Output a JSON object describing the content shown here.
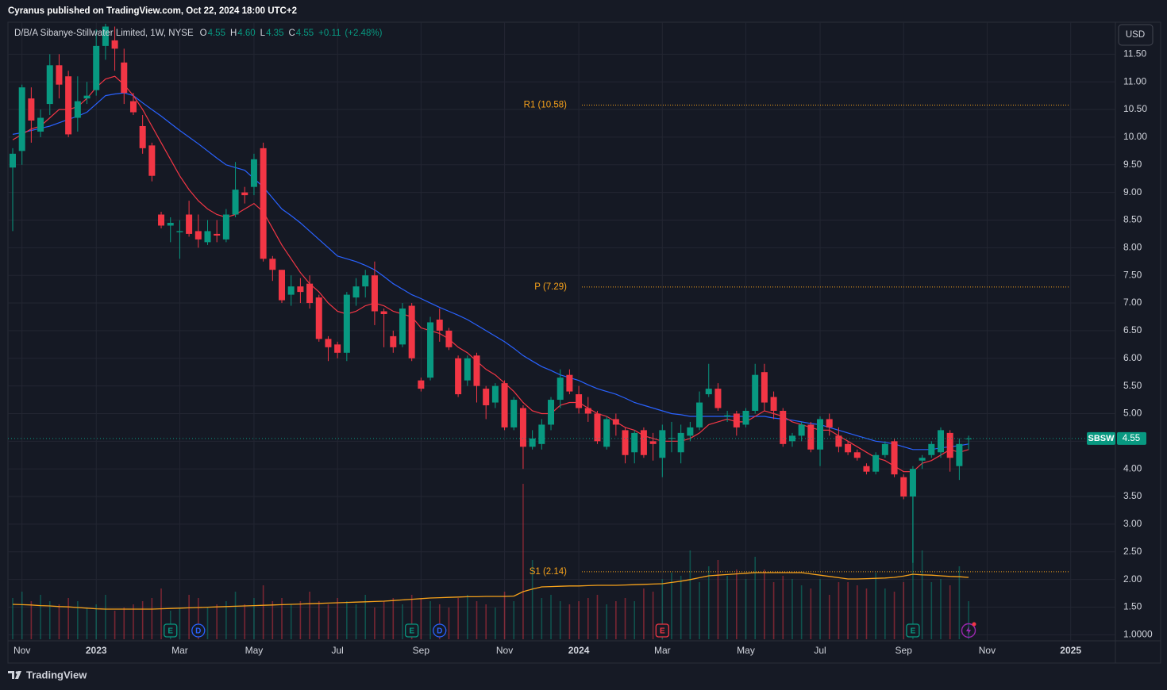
{
  "publisher": "Cyranus published on TradingView.com, Oct 22, 2024 18:00 UTC+2",
  "brand": "TradingView",
  "currency_button": "USD",
  "chart_data": {
    "type": "candlestick",
    "title": "D/B/A Sibanye-Stillwater Limited, 1W, NYSE",
    "header_values": [
      {
        "key": "O",
        "text": "4.55"
      },
      {
        "key": "H",
        "text": "4.60"
      },
      {
        "key": "L",
        "text": "4.35"
      },
      {
        "key": "C",
        "text": "4.55"
      }
    ],
    "change": "+0.11",
    "change_pct": "(+2.48%)",
    "up_color": "#089981",
    "down_color": "#f23645",
    "grid": true,
    "categories": [
      null,
      "Nov",
      null,
      null,
      null,
      null,
      null,
      null,
      null,
      "2023",
      null,
      null,
      null,
      null,
      null,
      null,
      null,
      null,
      "Mar",
      null,
      null,
      null,
      null,
      null,
      null,
      null,
      "May",
      null,
      null,
      null,
      null,
      null,
      null,
      null,
      null,
      "Jul",
      null,
      null,
      null,
      null,
      null,
      null,
      null,
      null,
      "Sep",
      null,
      null,
      null,
      null,
      null,
      null,
      null,
      null,
      "Nov",
      null,
      null,
      null,
      null,
      null,
      null,
      null,
      "2024",
      null,
      null,
      null,
      null,
      null,
      null,
      null,
      null,
      "Mar",
      null,
      null,
      null,
      null,
      null,
      null,
      null,
      null,
      "May",
      null,
      null,
      null,
      null,
      null,
      null,
      null,
      "Jul",
      null,
      null,
      null,
      null,
      null,
      null,
      null,
      null,
      "Sep",
      null,
      null,
      null,
      null,
      null,
      null,
      null,
      null,
      "Nov",
      null,
      null,
      null,
      null,
      null,
      null,
      null,
      null,
      "2025",
      null
    ],
    "open": [
      9.45,
      9.75,
      10.7,
      10.1,
      10.6,
      11.3,
      11.1,
      10.35,
      10.7,
      10.85,
      11.65,
      11.75,
      11.35,
      10.65,
      10.2,
      9.85,
      8.6,
      8.4,
      8.28,
      8.6,
      8.3,
      8.1,
      8.25,
      8.15,
      8.6,
      9.0,
      9.1,
      9.8,
      7.8,
      7.6,
      7.15,
      7.3,
      7.35,
      7.1,
      6.35,
      6.25,
      6.1,
      7.1,
      7.3,
      7.5,
      6.85,
      6.4,
      6.25,
      6.95,
      5.6,
      5.65,
      6.7,
      6.5,
      6.0,
      5.6,
      6.05,
      5.45,
      5.2,
      5.55,
      4.75,
      5.1,
      4.4,
      4.45,
      4.8,
      5.25,
      5.7,
      5.35,
      5.1,
      5.0,
      4.4,
      4.9,
      4.7,
      4.3,
      4.7,
      4.5,
      4.2,
      4.55,
      4.3,
      4.6,
      4.75,
      5.35,
      5.45,
      4.95,
      5.0,
      4.8,
      5.05,
      5.75,
      5.3,
      5.05,
      4.5,
      4.6,
      4.8,
      4.35,
      4.9,
      4.6,
      4.45,
      4.3,
      4.05,
      3.95,
      4.25,
      4.5,
      3.85,
      3.5,
      4.15,
      4.25,
      4.3,
      4.65,
      4.05,
      4.55,
      null,
      null,
      null,
      null,
      null,
      null,
      null,
      null,
      null,
      null,
      null,
      null
    ],
    "high": [
      9.8,
      10.95,
      10.9,
      10.5,
      11.5,
      11.5,
      11.2,
      11.1,
      11.0,
      11.95,
      12.05,
      12.0,
      11.6,
      10.8,
      10.4,
      9.9,
      8.65,
      8.55,
      8.5,
      8.85,
      8.6,
      8.5,
      8.5,
      8.7,
      9.55,
      9.1,
      9.7,
      9.9,
      7.85,
      7.6,
      7.5,
      7.45,
      7.5,
      7.15,
      6.4,
      6.3,
      7.2,
      7.45,
      7.6,
      7.75,
      6.9,
      6.5,
      7.0,
      7.0,
      5.65,
      6.75,
      6.9,
      6.55,
      6.05,
      6.05,
      6.1,
      5.5,
      5.55,
      5.6,
      5.3,
      5.15,
      4.7,
      4.9,
      5.3,
      5.8,
      5.8,
      5.5,
      5.3,
      5.05,
      4.95,
      5.0,
      4.75,
      4.7,
      4.75,
      4.65,
      4.8,
      4.85,
      4.8,
      4.85,
      5.4,
      5.9,
      5.55,
      5.05,
      5.05,
      5.1,
      5.9,
      5.9,
      5.4,
      5.1,
      4.65,
      4.85,
      4.85,
      4.95,
      5.0,
      4.75,
      4.5,
      4.35,
      4.1,
      4.3,
      4.5,
      4.55,
      3.9,
      4.05,
      4.25,
      4.5,
      4.75,
      4.7,
      4.55,
      4.6,
      null,
      null,
      null,
      null,
      null,
      null,
      null,
      null,
      null,
      null,
      null,
      null
    ],
    "low": [
      8.3,
      9.5,
      9.9,
      10.0,
      10.4,
      10.7,
      10.0,
      10.1,
      10.6,
      10.75,
      11.4,
      11.2,
      10.6,
      10.4,
      9.7,
      9.2,
      8.35,
      8.1,
      7.8,
      8.2,
      8.0,
      8.05,
      8.1,
      8.1,
      8.55,
      8.8,
      8.95,
      7.75,
      7.4,
      7.0,
      6.95,
      7.0,
      6.9,
      6.3,
      5.95,
      6.0,
      5.95,
      6.95,
      7.1,
      6.6,
      6.2,
      6.1,
      6.2,
      5.95,
      5.4,
      5.6,
      6.3,
      6.15,
      5.3,
      5.5,
      5.2,
      4.9,
      5.1,
      4.7,
      4.7,
      4.0,
      4.35,
      4.35,
      4.7,
      5.1,
      5.35,
      5.0,
      4.85,
      4.45,
      4.35,
      4.6,
      4.1,
      4.1,
      4.2,
      4.15,
      3.85,
      4.3,
      4.1,
      4.5,
      4.7,
      5.3,
      5.05,
      4.85,
      4.6,
      4.75,
      5.0,
      5.05,
      4.9,
      4.4,
      4.4,
      4.5,
      4.3,
      4.05,
      4.6,
      4.3,
      4.25,
      4.15,
      3.9,
      3.9,
      4.2,
      3.85,
      3.45,
      2.3,
      4.0,
      4.2,
      4.2,
      3.95,
      3.8,
      4.35,
      null,
      null,
      null,
      null,
      null,
      null,
      null,
      null,
      null,
      null,
      null,
      null
    ],
    "close": [
      9.7,
      10.9,
      10.3,
      10.35,
      11.3,
      10.95,
      10.05,
      10.65,
      10.75,
      11.65,
      12.0,
      11.6,
      10.8,
      10.45,
      9.8,
      9.3,
      8.4,
      8.45,
      8.3,
      8.25,
      8.15,
      8.3,
      8.22,
      8.6,
      9.05,
      8.95,
      9.6,
      7.8,
      7.6,
      7.05,
      7.3,
      7.2,
      7.0,
      6.35,
      6.2,
      6.1,
      7.15,
      7.3,
      7.5,
      6.85,
      6.8,
      6.2,
      6.9,
      6.0,
      5.45,
      6.65,
      6.5,
      6.2,
      5.35,
      6.0,
      5.5,
      5.15,
      5.5,
      4.75,
      5.25,
      4.4,
      4.55,
      4.8,
      5.25,
      5.65,
      5.4,
      5.1,
      5.0,
      4.5,
      4.9,
      4.8,
      4.25,
      4.65,
      4.25,
      4.45,
      4.7,
      4.56,
      4.65,
      4.75,
      5.2,
      5.45,
      5.1,
      4.97,
      4.75,
      5.05,
      5.7,
      5.2,
      5.05,
      4.45,
      4.6,
      4.8,
      4.35,
      4.9,
      4.75,
      4.4,
      4.3,
      4.2,
      3.95,
      4.25,
      4.45,
      3.9,
      3.5,
      4.0,
      4.2,
      4.45,
      4.7,
      4.2,
      4.45,
      4.55,
      null,
      null,
      null,
      null,
      null,
      null,
      null,
      null,
      null,
      null,
      null,
      null
    ],
    "ma_fast": {
      "color": "#f23645",
      "values": [
        9.95,
        10.05,
        10.15,
        10.2,
        10.35,
        10.5,
        10.5,
        10.55,
        10.7,
        10.9,
        11.05,
        11.1,
        10.95,
        10.75,
        10.5,
        10.2,
        9.9,
        9.6,
        9.3,
        9.05,
        8.85,
        8.7,
        8.6,
        8.55,
        8.6,
        8.7,
        8.8,
        8.65,
        8.35,
        8.05,
        7.8,
        7.55,
        7.35,
        7.2,
        7.0,
        6.85,
        6.8,
        6.85,
        6.95,
        7.0,
        6.95,
        6.85,
        6.8,
        6.75,
        6.55,
        6.5,
        6.45,
        6.35,
        6.2,
        6.1,
        5.95,
        5.8,
        5.7,
        5.55,
        5.4,
        5.2,
        5.05,
        5.0,
        5.0,
        5.15,
        5.2,
        5.2,
        5.1,
        5.0,
        4.95,
        4.85,
        4.75,
        4.7,
        4.6,
        4.55,
        4.5,
        4.5,
        4.5,
        4.55,
        4.65,
        4.8,
        4.85,
        4.9,
        4.85,
        4.85,
        4.95,
        5.05,
        5.0,
        4.95,
        4.85,
        4.8,
        4.75,
        4.7,
        4.7,
        4.6,
        4.5,
        4.4,
        4.3,
        4.2,
        4.15,
        4.05,
        3.95,
        3.95,
        4.1,
        4.15,
        4.25,
        4.35,
        4.3,
        4.35,
        null,
        null,
        null,
        null,
        null,
        null,
        null,
        null,
        null,
        null,
        null,
        null
      ]
    },
    "ma_slow": {
      "color": "#2962ff",
      "values": [
        10.05,
        10.08,
        10.12,
        10.16,
        10.2,
        10.26,
        10.32,
        10.38,
        10.45,
        10.6,
        10.75,
        10.78,
        10.8,
        10.75,
        10.62,
        10.5,
        10.38,
        10.25,
        10.12,
        10.0,
        9.88,
        9.75,
        9.62,
        9.5,
        9.45,
        9.4,
        9.25,
        9.1,
        8.9,
        8.7,
        8.58,
        8.45,
        8.3,
        8.15,
        8.0,
        7.85,
        7.8,
        7.75,
        7.68,
        7.6,
        7.48,
        7.35,
        7.25,
        7.15,
        7.08,
        7.0,
        6.92,
        6.85,
        6.78,
        6.7,
        6.6,
        6.5,
        6.4,
        6.3,
        6.18,
        6.05,
        5.95,
        5.85,
        5.78,
        5.7,
        5.65,
        5.6,
        5.52,
        5.45,
        5.4,
        5.35,
        5.28,
        5.2,
        5.15,
        5.1,
        5.05,
        5.0,
        4.98,
        4.95,
        4.95,
        4.95,
        4.95,
        4.95,
        4.95,
        4.95,
        4.95,
        4.95,
        4.92,
        4.9,
        4.88,
        4.85,
        4.82,
        4.8,
        4.75,
        4.7,
        4.65,
        4.6,
        4.55,
        4.5,
        4.48,
        4.45,
        4.4,
        4.35,
        4.35,
        4.35,
        4.38,
        4.4,
        4.42,
        4.45,
        null,
        null,
        null,
        null,
        null,
        null,
        null,
        null,
        null,
        null,
        null,
        null
      ]
    },
    "volume": [
      13,
      15,
      12,
      14,
      12,
      11,
      13,
      12,
      10,
      11,
      14,
      9,
      10,
      11,
      12,
      13,
      16,
      9,
      10,
      14,
      13,
      10,
      11,
      12,
      15,
      11,
      13,
      17,
      12,
      13,
      11,
      12,
      15,
      12,
      11,
      13,
      12,
      11,
      14,
      10,
      12,
      13,
      11,
      14,
      13,
      12,
      11,
      10,
      13,
      14,
      12,
      11,
      10,
      15,
      12,
      49,
      25,
      13,
      14,
      12,
      11,
      12,
      13,
      14,
      11,
      12,
      13,
      12,
      16,
      15,
      19,
      21,
      20,
      28,
      18,
      23,
      25,
      20,
      22,
      19,
      26,
      22,
      18,
      20,
      19,
      17,
      16,
      19,
      14,
      18,
      18,
      17,
      16,
      21,
      16,
      15,
      18,
      47,
      28,
      18,
      19,
      17,
      23,
      12,
      null,
      null,
      null,
      null,
      null,
      null,
      null,
      null,
      null,
      null,
      null,
      null
    ],
    "volume_ma": {
      "color": "#f7a21b",
      "values": [
        11,
        10.9,
        10.8,
        10.6,
        10.5,
        10.3,
        10.2,
        10,
        9.8,
        9.6,
        9.5,
        9.5,
        9.5,
        9.5,
        9.5,
        9.5,
        9.6,
        9.7,
        9.8,
        9.9,
        10,
        10.1,
        10.2,
        10.3,
        10.4,
        10.5,
        10.6,
        10.7,
        10.8,
        10.9,
        11,
        11.1,
        11.2,
        11.3,
        11.4,
        11.5,
        11.6,
        11.7,
        11.8,
        11.9,
        12,
        12.2,
        12.4,
        12.6,
        12.8,
        13,
        13.1,
        13.2,
        13.3,
        13.4,
        13.4,
        13.5,
        13.5,
        13.5,
        13.6,
        15,
        15.8,
        16.5,
        16.6,
        16.7,
        16.8,
        16.8,
        16.9,
        17,
        17,
        17,
        17.1,
        17.2,
        17.3,
        17.4,
        17.5,
        17.9,
        18.3,
        18.8,
        19.4,
        20,
        20.2,
        20.4,
        20.6,
        20.8,
        21,
        21,
        21,
        21,
        21,
        21,
        20.6,
        20.2,
        19.8,
        19.4,
        19,
        19,
        19.1,
        19.2,
        19.3,
        19.5,
        19.9,
        20.5,
        20.3,
        20.2,
        20,
        19.8,
        19.7,
        19.5,
        null,
        null,
        null,
        null,
        null,
        null,
        null,
        null,
        null,
        null,
        null,
        null
      ]
    },
    "events": [
      null,
      null,
      null,
      null,
      null,
      null,
      null,
      null,
      null,
      null,
      null,
      null,
      null,
      null,
      null,
      null,
      null,
      {
        "label": "E",
        "color": "#089981"
      },
      null,
      null,
      {
        "label": "D",
        "color": "#2962ff"
      },
      null,
      null,
      null,
      null,
      null,
      null,
      null,
      null,
      null,
      null,
      null,
      null,
      null,
      null,
      null,
      null,
      null,
      null,
      null,
      null,
      null,
      null,
      {
        "label": "E",
        "color": "#089981"
      },
      null,
      null,
      {
        "label": "D",
        "color": "#2962ff"
      },
      null,
      null,
      null,
      null,
      null,
      null,
      null,
      null,
      null,
      null,
      null,
      null,
      null,
      null,
      null,
      null,
      null,
      null,
      null,
      null,
      null,
      null,
      null,
      {
        "label": "E",
        "color": "#f23645"
      },
      null,
      null,
      null,
      null,
      null,
      null,
      null,
      null,
      null,
      null,
      null,
      null,
      null,
      null,
      null,
      null,
      null,
      null,
      null,
      null,
      null,
      null,
      null,
      null,
      null,
      null,
      {
        "label": "E",
        "color": "#089981"
      },
      null,
      null,
      null,
      null,
      null,
      null,
      null,
      null,
      null,
      null,
      null,
      null,
      null,
      null,
      null,
      null,
      null,
      null
    ],
    "pivots": [
      {
        "label": "R1 (10.58)",
        "value": 10.58
      },
      {
        "label": "P (7.29)",
        "value": 7.29
      },
      {
        "label": "S1 (2.14)",
        "value": 2.14
      }
    ],
    "pivot_color": "#f7a21b",
    "last_price": {
      "symbol": "SBSW",
      "value": 4.55
    },
    "ylim": [
      0.89,
      12.05
    ],
    "yticks": [
      {
        "value": 1,
        "label": "1.0000"
      },
      {
        "value": 1.5,
        "label": "1.50"
      },
      {
        "value": 2,
        "label": "2.00"
      },
      {
        "value": 2.5,
        "label": "2.50"
      },
      {
        "value": 3,
        "label": "3.00"
      },
      {
        "value": 3.5,
        "label": "3.50"
      },
      {
        "value": 4,
        "label": "4.00"
      },
      {
        "value": 4.5,
        "label": "4.50"
      },
      {
        "value": 5,
        "label": "5.00"
      },
      {
        "value": 5.5,
        "label": "5.50"
      },
      {
        "value": 6,
        "label": "6.00"
      },
      {
        "value": 6.5,
        "label": "6.50"
      },
      {
        "value": 7,
        "label": "7.00"
      },
      {
        "value": 7.5,
        "label": "7.50"
      },
      {
        "value": 8,
        "label": "8.00"
      },
      {
        "value": 8.5,
        "label": "8.50"
      },
      {
        "value": 9,
        "label": "9.00"
      },
      {
        "value": 9.5,
        "label": "9.50"
      },
      {
        "value": 10,
        "label": "10.00"
      },
      {
        "value": 10.5,
        "label": "10.50"
      },
      {
        "value": 11,
        "label": "11.00"
      },
      {
        "value": 11.5,
        "label": "11.50"
      }
    ]
  }
}
